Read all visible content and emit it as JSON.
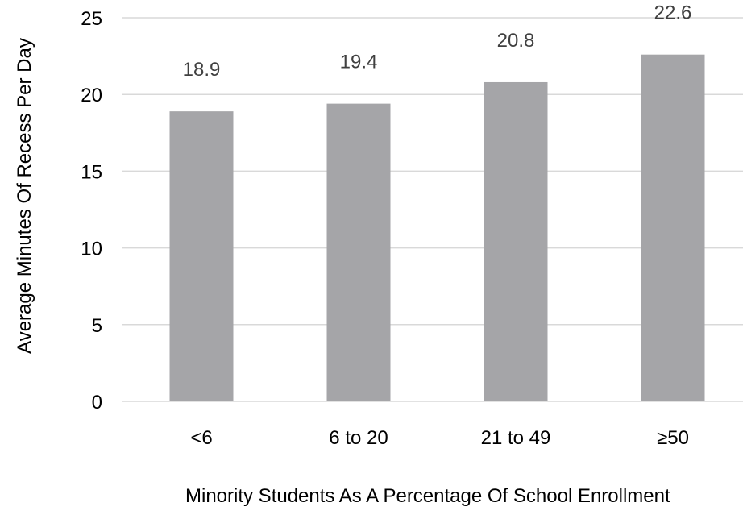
{
  "chart_data": {
    "type": "bar",
    "categories": [
      "<6",
      "6 to 20",
      "21 to 49",
      "≥50"
    ],
    "values": [
      18.9,
      19.4,
      20.8,
      22.6
    ],
    "data_labels": [
      "18.9",
      "19.4",
      "20.8",
      "22.6"
    ],
    "title": "",
    "xlabel": "Minority Students As A Percentage Of School Enrollment",
    "ylabel": "Average Minutes Of Recess Per Day",
    "ylim": [
      0,
      25
    ],
    "yticks": [
      0,
      5,
      10,
      15,
      20,
      25
    ],
    "ytick_labels": [
      "0",
      "5",
      "10",
      "15",
      "20",
      "25"
    ],
    "grid": true,
    "legend": "none",
    "colors": {
      "bar": "#a5a5a8",
      "gridline": "#d9d9d9",
      "data_label": "#404040",
      "text": "#000000"
    }
  }
}
